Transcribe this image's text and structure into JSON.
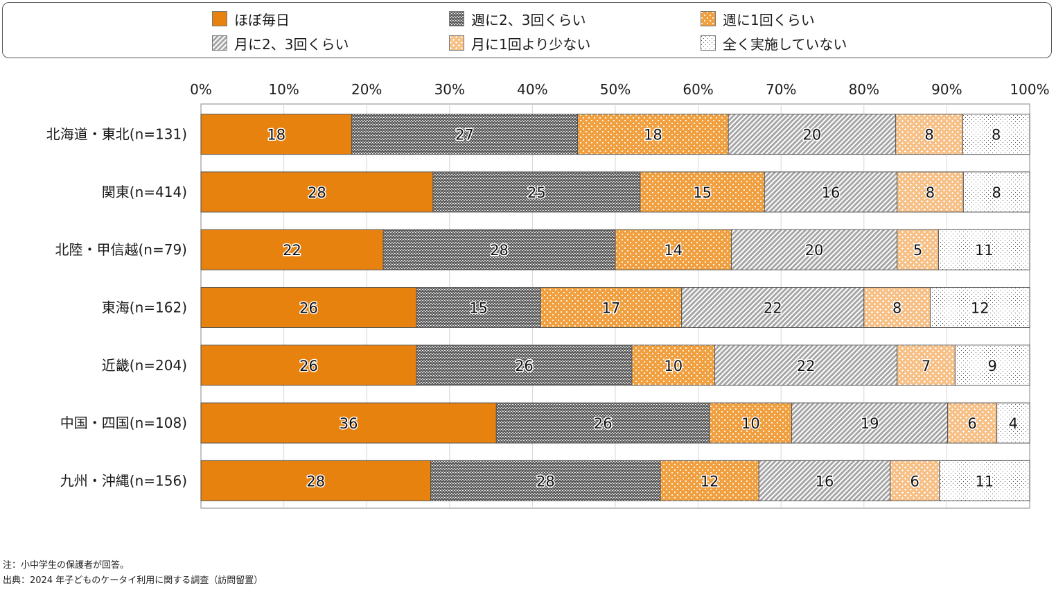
{
  "chart_data": {
    "type": "bar",
    "orientation": "horizontal",
    "stacked": "percent",
    "title": "",
    "xlabel": "",
    "ylabel": "",
    "xlim": [
      0,
      100
    ],
    "x_ticks": [
      "0%",
      "10%",
      "20%",
      "30%",
      "40%",
      "50%",
      "60%",
      "70%",
      "80%",
      "90%",
      "100%"
    ],
    "grid": true,
    "legend_position": "top",
    "categories": [
      "北海道・東北(n=131)",
      "関東(n=414)",
      "北陸・甲信越(n=79)",
      "東海(n=162)",
      "近畿(n=204)",
      "中国・四国(n=108)",
      "九州・沖縄(n=156)"
    ],
    "series": [
      {
        "name": "ほぼ毎日",
        "color": "#e8820f",
        "pattern": "solid",
        "values": [
          18,
          28,
          22,
          26,
          26,
          36,
          28
        ]
      },
      {
        "name": "週に2、3回くらい",
        "color": "#666666",
        "pattern": "dense-crosshatch",
        "values": [
          27,
          25,
          28,
          15,
          26,
          26,
          28
        ]
      },
      {
        "name": "週に1回くらい",
        "color": "#f0a040",
        "pattern": "dots-white",
        "values": [
          18,
          15,
          14,
          17,
          10,
          10,
          12
        ]
      },
      {
        "name": "月に2、3回くらい",
        "color": "#aaaaaa",
        "pattern": "diagonal-stripes",
        "values": [
          20,
          16,
          20,
          22,
          22,
          19,
          16
        ]
      },
      {
        "name": "月に1回より少ない",
        "color": "#f7c38a",
        "pattern": "crosses-white",
        "values": [
          8,
          8,
          5,
          8,
          7,
          6,
          6
        ]
      },
      {
        "name": "全く実施していない",
        "color": "#ffffff",
        "pattern": "sparse-dots",
        "values": [
          8,
          8,
          11,
          12,
          9,
          4,
          11
        ]
      }
    ]
  },
  "notes": {
    "note": "注：小中学生の保護者が回答。",
    "source": "出典：2024 年子どものケータイ利用に関する調査（訪問留置）"
  }
}
